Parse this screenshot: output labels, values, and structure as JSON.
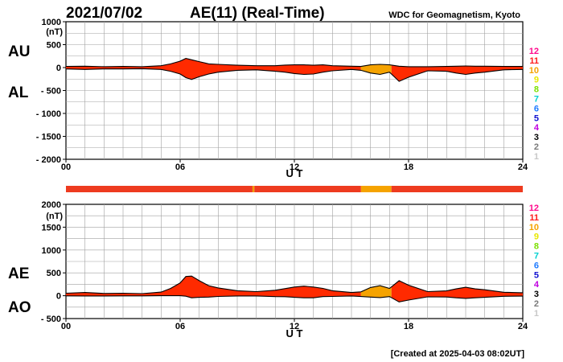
{
  "header": {
    "date": "2021/07/02",
    "title": "AE(11) (Real-Time)",
    "source": "WDC for Geomagnetism, Kyoto"
  },
  "footer": {
    "created": "[Created at 2025-04-03 08:02UT]"
  },
  "colors": {
    "fill_main": "#ff2a00",
    "fill_alt": "#f5a300",
    "bar_main": "#ee3b1f",
    "grid": "#a0a0a0",
    "line": "#000000"
  },
  "legend": {
    "levels": [
      {
        "label": "12",
        "color": "#ff0a8c"
      },
      {
        "label": "11",
        "color": "#ff1a1a"
      },
      {
        "label": "10",
        "color": "#f5a300"
      },
      {
        "label": "9",
        "color": "#e8e800"
      },
      {
        "label": "8",
        "color": "#7ce000"
      },
      {
        "label": "7",
        "color": "#00d0d0"
      },
      {
        "label": "6",
        "color": "#1e7bff"
      },
      {
        "label": "5",
        "color": "#1010d0"
      },
      {
        "label": "4",
        "color": "#c000e0"
      },
      {
        "label": "3",
        "color": "#000000"
      },
      {
        "label": "2",
        "color": "#7a7a7a"
      },
      {
        "label": "1",
        "color": "#c8c8c8"
      }
    ]
  },
  "chart_data": [
    {
      "type": "area",
      "panel": "AU/AL",
      "label_upper": "AU",
      "label_lower": "AL",
      "unit": "(nT)",
      "xlabel": "U T",
      "xlim": [
        0,
        24
      ],
      "ylim": [
        -2000,
        1000
      ],
      "yticks": [
        "1000",
        "500",
        "0",
        "- 500",
        "- 1000",
        "- 1500",
        "- 2000"
      ],
      "ytick_values": [
        1000,
        500,
        0,
        -500,
        -1000,
        -1500,
        -2000
      ],
      "xticks": [
        "00",
        "06",
        "12",
        "18",
        "24"
      ],
      "xtick_values": [
        0,
        6,
        12,
        18,
        24
      ],
      "upper_series": {
        "name": "AU",
        "x": [
          0,
          1,
          2,
          3,
          4,
          5,
          5.5,
          6,
          6.3,
          6.6,
          7,
          7.5,
          8,
          9,
          10,
          11,
          11.5,
          12,
          12.5,
          13,
          13.5,
          14,
          15,
          15.5,
          16,
          16.5,
          17,
          17.5,
          18,
          19,
          20,
          20.5,
          21,
          21.5,
          22,
          23,
          24
        ],
        "y": [
          25,
          30,
          20,
          25,
          20,
          40,
          80,
          140,
          200,
          170,
          130,
          80,
          70,
          50,
          40,
          40,
          55,
          60,
          60,
          50,
          60,
          40,
          30,
          25,
          60,
          70,
          60,
          30,
          20,
          20,
          25,
          30,
          35,
          30,
          30,
          25,
          25
        ]
      },
      "lower_series": {
        "name": "AL",
        "x": [
          0,
          1,
          2,
          3,
          4,
          5,
          5.5,
          6,
          6.3,
          6.6,
          7,
          7.5,
          8,
          9,
          10,
          11,
          11.5,
          12,
          12.5,
          13,
          13.5,
          14,
          15,
          15.5,
          16,
          16.5,
          17,
          17.5,
          18,
          19,
          20,
          20.5,
          21,
          21.5,
          22,
          23,
          24
        ],
        "y": [
          -30,
          -40,
          -30,
          -30,
          -25,
          -40,
          -80,
          -140,
          -220,
          -260,
          -200,
          -140,
          -100,
          -60,
          -50,
          -80,
          -100,
          -130,
          -150,
          -140,
          -100,
          -70,
          -40,
          -60,
          -120,
          -150,
          -100,
          -300,
          -210,
          -70,
          -80,
          -120,
          -150,
          -120,
          -100,
          -50,
          -40
        ]
      }
    },
    {
      "type": "area",
      "panel": "AE/AO",
      "label_upper": "AE",
      "label_lower": "AO",
      "unit": "(nT)",
      "xlabel": "U T",
      "xlim": [
        0,
        24
      ],
      "ylim": [
        -500,
        2000
      ],
      "yticks": [
        "2000",
        "1500",
        "1000",
        "500",
        "0",
        "- 500"
      ],
      "ytick_values": [
        2000,
        1500,
        1000,
        500,
        0,
        -500
      ],
      "xticks": [
        "00",
        "06",
        "12",
        "18",
        "24"
      ],
      "xtick_values": [
        0,
        6,
        12,
        18,
        24
      ],
      "upper_series": {
        "name": "AE",
        "x": [
          0,
          1,
          2,
          3,
          4,
          5,
          5.5,
          6,
          6.3,
          6.6,
          7,
          7.5,
          8,
          9,
          10,
          11,
          11.5,
          12,
          12.5,
          13,
          13.5,
          14,
          15,
          15.5,
          16,
          16.5,
          17,
          17.5,
          18,
          19,
          20,
          20.5,
          21,
          21.5,
          22,
          23,
          24
        ],
        "y": [
          55,
          70,
          50,
          55,
          45,
          80,
          160,
          280,
          420,
          430,
          330,
          220,
          170,
          110,
          90,
          120,
          155,
          190,
          210,
          190,
          160,
          110,
          70,
          85,
          180,
          220,
          160,
          330,
          230,
          90,
          105,
          150,
          185,
          150,
          130,
          75,
          65
        ]
      },
      "lower_series": {
        "name": "AO",
        "x": [
          0,
          1,
          2,
          3,
          4,
          5,
          5.5,
          6,
          6.3,
          6.6,
          7,
          7.5,
          8,
          9,
          10,
          11,
          11.5,
          12,
          12.5,
          13,
          13.5,
          14,
          15,
          15.5,
          16,
          16.5,
          17,
          17.5,
          18,
          19,
          20,
          20.5,
          21,
          21.5,
          22,
          23,
          24
        ],
        "y": [
          -3,
          -5,
          -5,
          -3,
          -3,
          0,
          0,
          0,
          -10,
          -45,
          -35,
          -30,
          -15,
          -5,
          -5,
          -20,
          -22,
          -35,
          -45,
          -45,
          -20,
          -15,
          -5,
          -18,
          -30,
          -40,
          -20,
          -135,
          -95,
          -25,
          -28,
          -45,
          -58,
          -45,
          -35,
          -12,
          -8
        ]
      }
    }
  ],
  "alt_color_window": [
    15.5,
    17.1
  ],
  "status_bar_segments": [
    {
      "start": 0,
      "end": 9.8,
      "color": "#ee3b1f"
    },
    {
      "start": 9.8,
      "end": 9.9,
      "color": "#f0a000"
    },
    {
      "start": 9.9,
      "end": 15.5,
      "color": "#ee3b1f"
    },
    {
      "start": 15.5,
      "end": 17.1,
      "color": "#f5a300"
    },
    {
      "start": 17.1,
      "end": 24,
      "color": "#ee3b1f"
    }
  ]
}
